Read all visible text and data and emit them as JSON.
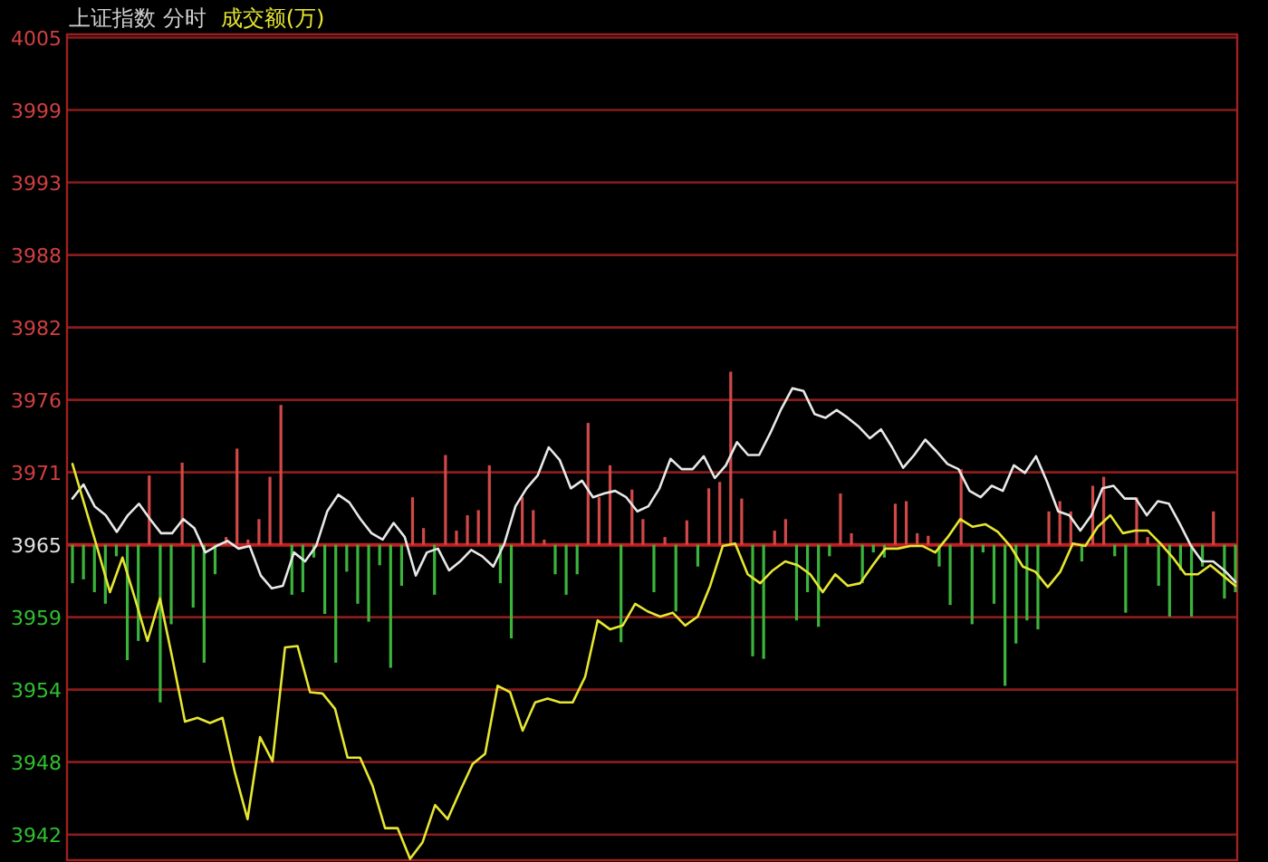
{
  "chart_data": [
    {
      "type": "bar",
      "title": "上证指数 分时",
      "categories": [
        null,
        null,
        null,
        null,
        null,
        null,
        null,
        null,
        null,
        null,
        null,
        null,
        null,
        null,
        null,
        null,
        null,
        null,
        null,
        null,
        null,
        null,
        null,
        null,
        null,
        null,
        null,
        null,
        null,
        null,
        null,
        null,
        null,
        null,
        null,
        null,
        null,
        null,
        null,
        null,
        null,
        null,
        null,
        null,
        null,
        null,
        null,
        null,
        null,
        null,
        null,
        null,
        null,
        null,
        null,
        null,
        null,
        null,
        null,
        null,
        null,
        null,
        null,
        null,
        null,
        null,
        null,
        null,
        null,
        null,
        null,
        null,
        null,
        null,
        null,
        null,
        null,
        null,
        null,
        null,
        null,
        null,
        null,
        null,
        null,
        null,
        null,
        null,
        null,
        null,
        null,
        null,
        null,
        null,
        null,
        null,
        null,
        null,
        null,
        null,
        null,
        null,
        null,
        null,
        null,
        null,
        null
      ],
      "values": [
        -3.0,
        -2.7,
        -3.7,
        -4.6,
        -0.9,
        -9.0,
        -7.5,
        5.4,
        -12.3,
        -6.2,
        6.4,
        -4.9,
        -9.2,
        -2.3,
        0.6,
        7.5,
        0.4,
        2.0,
        5.3,
        10.9,
        -3.9,
        -3.7,
        -1.0,
        -5.4,
        -9.2,
        -2.1,
        -4.6,
        -6.0,
        -1.6,
        -9.6,
        -3.2,
        3.7,
        1.3,
        -3.9,
        7.0,
        1.1,
        2.3,
        2.7,
        6.2,
        -3.0,
        -7.3,
        3.7,
        2.7,
        0.4,
        -2.3,
        -3.9,
        -2.3,
        9.5,
        3.7,
        6.2,
        -7.6,
        4.3,
        2.0,
        -3.7,
        0.6,
        -5.2,
        1.9,
        -1.7,
        4.4,
        4.9,
        13.5,
        3.6,
        -8.7,
        -8.9,
        1.1,
        2.0,
        -5.9,
        -3.7,
        -6.4,
        -0.9,
        4.0,
        0.9,
        -3.0,
        -0.6,
        -1.0,
        3.2,
        3.4,
        0.9,
        0.7,
        -1.7,
        -4.7,
        5.9,
        -6.2,
        -0.6,
        -4.6,
        -11.0,
        -7.7,
        -5.9,
        -6.6,
        2.6,
        3.4,
        2.6,
        -1.3,
        4.6,
        5.3,
        -0.9,
        -5.3,
        3.7,
        0.6,
        -3.2,
        -5.6,
        -2.0,
        -5.6,
        -1.7,
        2.6,
        -4.2,
        -3.7
      ],
      "colors": [
        "#3cb43c",
        "#3cb43c",
        "#3cb43c",
        "#3cb43c",
        "#3cb43c",
        "#3cb43c",
        "#3cb43c",
        "#d04848",
        "#3cb43c",
        "#3cb43c",
        "#d04848",
        "#3cb43c",
        "#3cb43c",
        "#3cb43c",
        "#d04848",
        "#d04848",
        "#d04848",
        "#d04848",
        "#d04848",
        "#d04848",
        "#3cb43c",
        "#3cb43c",
        "#3cb43c",
        "#3cb43c",
        "#3cb43c",
        "#3cb43c",
        "#3cb43c",
        "#3cb43c",
        "#3cb43c",
        "#3cb43c",
        "#3cb43c",
        "#d04848",
        "#d04848",
        "#3cb43c",
        "#d04848",
        "#d04848",
        "#d04848",
        "#d04848",
        "#d04848",
        "#3cb43c",
        "#3cb43c",
        "#d04848",
        "#d04848",
        "#d04848",
        "#3cb43c",
        "#3cb43c",
        "#3cb43c",
        "#d04848",
        "#d04848",
        "#d04848",
        "#3cb43c",
        "#d04848",
        "#d04848",
        "#3cb43c",
        "#d04848",
        "#3cb43c",
        "#d04848",
        "#3cb43c",
        "#d04848",
        "#d04848",
        "#d04848",
        "#d04848",
        "#3cb43c",
        "#3cb43c",
        "#d04848",
        "#d04848",
        "#3cb43c",
        "#3cb43c",
        "#3cb43c",
        "#3cb43c",
        "#d04848",
        "#d04848",
        "#3cb43c",
        "#3cb43c",
        "#3cb43c",
        "#d04848",
        "#d04848",
        "#d04848",
        "#d04848",
        "#3cb43c",
        "#3cb43c",
        "#d04848",
        "#3cb43c",
        "#3cb43c",
        "#3cb43c",
        "#3cb43c",
        "#3cb43c",
        "#3cb43c",
        "#3cb43c",
        "#d04848",
        "#d04848",
        "#d04848",
        "#3cb43c",
        "#d04848",
        "#d04848",
        "#3cb43c",
        "#3cb43c",
        "#d04848",
        "#d04848",
        "#3cb43c",
        "#3cb43c",
        "#3cb43c",
        "#3cb43c",
        "#3cb43c",
        "#d04848",
        "#3cb43c",
        "#3cb43c"
      ],
      "base": [
        3965,
        3965,
        3965,
        3965,
        3965,
        3965,
        3965,
        3965,
        3965,
        3965,
        3965,
        3965,
        3965,
        3965,
        3965,
        3965,
        3965,
        3965,
        3965,
        3965,
        3965,
        3965,
        3965,
        3965,
        3965,
        3965,
        3965,
        3965,
        3965,
        3965,
        3965,
        3965,
        3965,
        3965,
        3965,
        3965,
        3965,
        3965,
        3965,
        3965,
        3965,
        3965,
        3965,
        3965,
        3965,
        3965,
        3965,
        3965,
        3965,
        3965,
        3965,
        3965,
        3965,
        3965,
        3965,
        3965,
        3965,
        3965,
        3965,
        3965,
        3965,
        3965,
        3965,
        3965,
        3965,
        3965,
        3965,
        3965,
        3965,
        3965,
        3965,
        3965,
        3965,
        3965,
        3965,
        3965,
        3965,
        3965,
        3965,
        3965,
        3965,
        3965,
        3965,
        3965,
        3965,
        3965,
        3965,
        3965,
        3965,
        3965,
        3965,
        3965,
        3965,
        3965,
        3965,
        3965,
        3965,
        3965,
        3965,
        3965,
        3965,
        3965,
        3965,
        3965,
        3965,
        3965,
        3965
      ],
      "ylim": [
        3940.4,
        4004.8
      ],
      "yticks": [
        {
          "value": 3942.4,
          "label": "3942"
        },
        {
          "value": 3948.05,
          "label": "3948"
        },
        {
          "value": 3953.7,
          "label": "3954"
        },
        {
          "value": 3959.35,
          "label": "3959"
        },
        {
          "value": 3965,
          "label": "3965"
        },
        {
          "value": 3970.65,
          "label": "3971"
        },
        {
          "value": 3976.3,
          "label": "3976"
        },
        {
          "value": 3981.95,
          "label": "3982"
        },
        {
          "value": 3987.6,
          "label": "3988"
        },
        {
          "value": 3993.25,
          "label": "3993"
        },
        {
          "value": 3998.9,
          "label": "3999"
        },
        {
          "value": 4004.55,
          "label": "4005"
        }
      ],
      "tick_labels": "y",
      "grid": "y",
      "ref_lines": [
        {
          "axis": "y",
          "value": 3965,
          "color": "#c02020"
        }
      ]
    },
    {
      "type": "line",
      "tick_labels": false,
      "ylim": [
        3940.4,
        4004.8
      ],
      "categories": [
        null,
        null,
        null,
        null,
        null,
        null,
        null,
        null,
        null,
        null,
        null,
        null,
        null,
        null,
        null,
        null,
        null,
        null,
        null,
        null,
        null,
        null,
        null,
        null,
        null,
        null,
        null,
        null,
        null,
        null,
        null,
        null,
        null,
        null,
        null,
        null,
        null,
        null,
        null,
        null,
        null,
        null,
        null,
        null,
        null,
        null,
        null,
        null,
        null,
        null,
        null,
        null,
        null,
        null,
        null,
        null,
        null,
        null,
        null,
        null,
        null,
        null,
        null,
        null,
        null,
        null,
        null,
        null,
        null,
        null,
        null,
        null,
        null,
        null,
        null,
        null,
        null,
        null,
        null,
        null,
        null,
        null,
        null,
        null,
        null,
        null,
        null,
        null,
        null,
        null,
        null,
        null,
        null,
        null,
        null,
        null,
        null,
        null,
        null,
        null,
        null,
        null,
        null,
        null,
        null,
        null
      ],
      "series": [
        {
          "color": "#e8e8e8",
          "values": [
            3968.6,
            3969.7,
            3968.0,
            3967.3,
            3966.0,
            3967.3,
            3968.2,
            3967.0,
            3965.9,
            3965.9,
            3967.0,
            3966.3,
            3964.4,
            3964.9,
            3965.3,
            3964.7,
            3964.9,
            3962.6,
            3961.6,
            3961.8,
            3964.4,
            3963.7,
            3964.9,
            3967.6,
            3968.9,
            3968.3,
            3967.0,
            3965.9,
            3965.4,
            3966.7,
            3965.6,
            3962.6,
            3964.4,
            3964.7,
            3963.0,
            3963.7,
            3964.6,
            3964.1,
            3963.3,
            3965.1,
            3968.0,
            3969.4,
            3970.4,
            3972.6,
            3971.6,
            3969.4,
            3970.0,
            3968.7,
            3969.0,
            3969.2,
            3968.7,
            3967.6,
            3968.0,
            3969.4,
            3971.7,
            3970.9,
            3970.9,
            3971.9,
            3970.2,
            3971.2,
            3973.0,
            3972.0,
            3972.0,
            3973.7,
            3975.6,
            3977.2,
            3977.0,
            3975.2,
            3974.9,
            3975.5,
            3974.9,
            3974.2,
            3973.3,
            3974.0,
            3972.6,
            3971.0,
            3972.0,
            3973.2,
            3972.3,
            3971.3,
            3970.9,
            3969.2,
            3968.7,
            3969.6,
            3969.2,
            3971.2,
            3970.6,
            3971.9,
            3969.9,
            3967.6,
            3967.3,
            3966.1,
            3967.3,
            3969.4,
            3969.6,
            3968.6,
            3968.6,
            3967.3,
            3968.4,
            3968.2,
            3966.6,
            3964.9,
            3963.7,
            3963.7,
            3963.0,
            3962.1
          ]
        }
      ]
    },
    {
      "type": "line",
      "tick_labels": false,
      "ylim": [
        3940.4,
        4004.8
      ],
      "categories": [
        null,
        null,
        null,
        null,
        null,
        null,
        null,
        null,
        null,
        null,
        null,
        null,
        null,
        null,
        null,
        null,
        null,
        null,
        null,
        null,
        null,
        null,
        null,
        null,
        null,
        null,
        null,
        null,
        null,
        null,
        null,
        null,
        null,
        null,
        null,
        null,
        null,
        null,
        null,
        null,
        null,
        null,
        null,
        null,
        null,
        null,
        null,
        null,
        null,
        null,
        null,
        null,
        null,
        null,
        null,
        null,
        null,
        null,
        null,
        null,
        null,
        null,
        null,
        null,
        null,
        null,
        null,
        null,
        null,
        null,
        null,
        null,
        null,
        null,
        null,
        null,
        null,
        null,
        null,
        null,
        null,
        null,
        null,
        null,
        null,
        null,
        null,
        null,
        null,
        null,
        null,
        null,
        null,
        null
      ],
      "series": [
        {
          "name": "成交额(万)",
          "color": "#e6e632",
          "values": [
            3971.3,
            3968.0,
            3964.7,
            3961.3,
            3964.0,
            3960.8,
            3957.5,
            3960.8,
            3956.1,
            3951.2,
            3951.5,
            3951.1,
            3951.5,
            3947.2,
            3943.6,
            3950.0,
            3948.1,
            3957.0,
            3957.1,
            3953.5,
            3953.4,
            3952.2,
            3948.4,
            3948.4,
            3946.2,
            3942.9,
            3942.9,
            3940.5,
            3941.8,
            3944.7,
            3943.6,
            3945.8,
            3947.9,
            3948.7,
            3954.0,
            3953.5,
            3950.5,
            3952.7,
            3953.0,
            3952.7,
            3952.7,
            3954.7,
            3959.1,
            3958.4,
            3958.7,
            3960.4,
            3959.8,
            3959.4,
            3959.7,
            3958.7,
            3959.4,
            3961.8,
            3964.9,
            3965.1,
            3962.7,
            3962.0,
            3963.0,
            3963.7,
            3963.4,
            3962.7,
            3961.3,
            3962.7,
            3961.8,
            3962.0,
            3963.4,
            3964.7,
            3964.7,
            3964.9,
            3964.9,
            3964.4,
            3965.6,
            3967.0,
            3966.4,
            3966.6,
            3966.0,
            3964.9,
            3963.3,
            3962.9,
            3961.7,
            3962.9,
            3965.1,
            3964.9,
            3966.4,
            3967.3,
            3965.9,
            3966.1,
            3966.1,
            3965.1,
            3964.0,
            3962.7,
            3962.7,
            3963.4,
            3962.6,
            3961.8
          ]
        }
      ]
    }
  ]
}
